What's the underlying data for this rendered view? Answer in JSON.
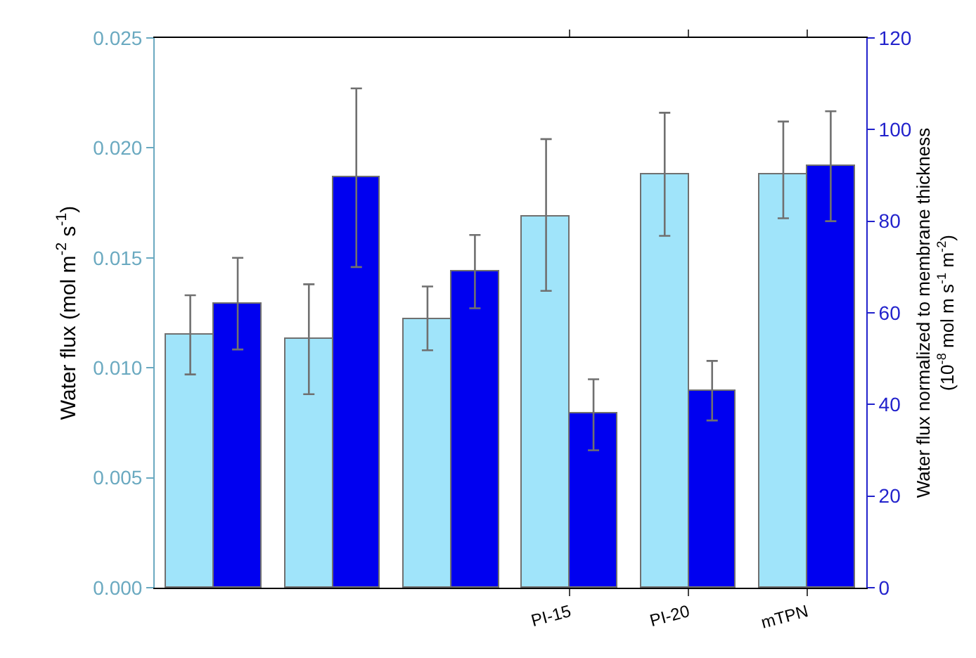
{
  "chart_data": {
    "type": "bar",
    "categories": [
      null,
      null,
      null,
      "PI-15",
      "PI-20",
      "mTPN"
    ],
    "ylabel": "Water flux (mol m$^{-2}$ s$^{-1}$)",
    "y2label": "Water flux normalized to membrane thickness\n(10$^{-8}$ mol m s$^{-1}$ m$^{-2}$)",
    "ylim": [
      0,
      0.025
    ],
    "yticks": [
      {
        "value": 0,
        "label": "0.000"
      },
      {
        "value": 0.005,
        "label": "0.005"
      },
      {
        "value": 0.01,
        "label": "0.010"
      },
      {
        "value": 0.015,
        "label": "0.015"
      },
      {
        "value": 0.02,
        "label": "0.020"
      },
      {
        "value": 0.025,
        "label": "0.025"
      }
    ],
    "y2lim": [
      0,
      120
    ],
    "y2ticks": [
      0,
      20,
      40,
      60,
      80,
      100,
      120
    ],
    "grid": false,
    "series": [
      {
        "color": "#a0e4fa",
        "values": [
          0.0115,
          0.0113,
          0.0122,
          0.0169,
          0.0188,
          0.0188
        ],
        "errors": [
          [
            0.0097,
            0.0133
          ],
          [
            0.0088,
            0.0138
          ],
          [
            0.0108,
            0.0137
          ],
          [
            0.0135,
            0.0204
          ],
          [
            0.016,
            0.0216
          ],
          [
            0.0168,
            0.0212
          ]
        ]
      },
      {
        "color": "#0000f0",
        "axis": "y2",
        "values": [
          62,
          89.5,
          69,
          38,
          43,
          92
        ],
        "errors": [
          [
            52,
            72
          ],
          [
            70,
            109
          ],
          [
            61,
            77
          ],
          [
            30,
            45.5
          ],
          [
            36.5,
            49.5
          ],
          [
            80,
            104
          ]
        ]
      }
    ]
  }
}
